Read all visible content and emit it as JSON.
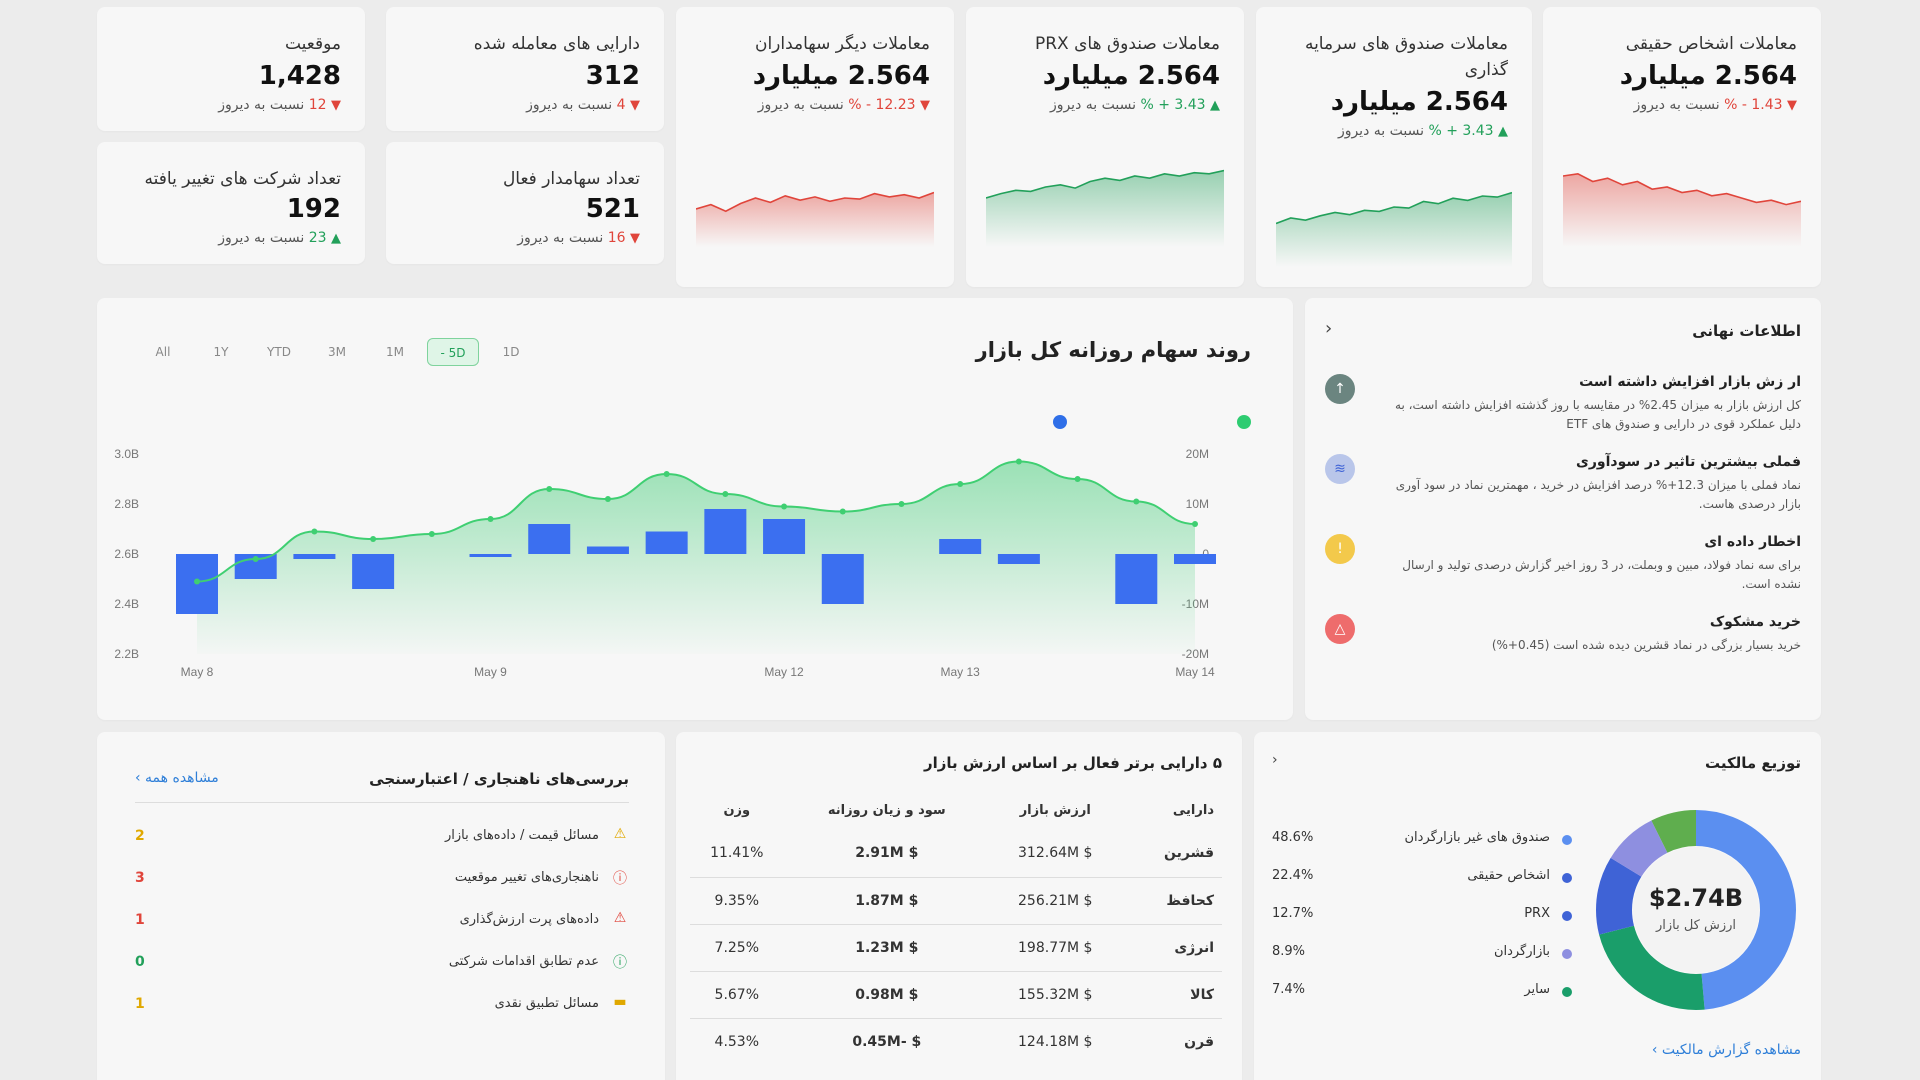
{
  "kpis": [
    {
      "id": "position",
      "title": "موقعیت",
      "value": "1,428",
      "delta": "12",
      "delta_dir": "down",
      "suffix": "نسبت به دیروز"
    },
    {
      "id": "traded-assets",
      "title": "دارایی های معامله شده",
      "value": "312",
      "delta": "4",
      "delta_dir": "down",
      "suffix": "نسبت به دیروز"
    },
    {
      "id": "changed-companies",
      "title": "تعداد شرکت های تغییر یافته",
      "value": "192",
      "delta": "23",
      "delta_dir": "up",
      "suffix": "نسبت به دیروز"
    },
    {
      "id": "active-shareholders",
      "title": "تعداد سهامدار فعال",
      "value": "521",
      "delta": "16",
      "delta_dir": "down",
      "suffix": "نسبت به دیروز"
    }
  ],
  "trade_cards": [
    {
      "id": "other-shareholders",
      "title": "معاملات دیگر سهامداران",
      "value": "2.564 میلیارد",
      "delta": "12.23 - %",
      "delta_dir": "down",
      "suffix": "نسبت به دیروز",
      "color": "#e0453b",
      "trend": [
        0.3,
        0.34,
        0.28,
        0.35,
        0.4,
        0.36,
        0.42,
        0.38,
        0.41,
        0.37,
        0.4,
        0.39,
        0.44,
        0.41,
        0.43,
        0.4,
        0.45
      ]
    },
    {
      "id": "prx-funds",
      "title": "معاملات صندوق های PRX",
      "value": "2.564 میلیارد",
      "delta": "3.43 + %",
      "delta_dir": "up",
      "suffix": "نسبت به دیروز",
      "color": "#22a05a",
      "trend": [
        0.4,
        0.44,
        0.47,
        0.46,
        0.5,
        0.52,
        0.49,
        0.55,
        0.58,
        0.56,
        0.6,
        0.58,
        0.62,
        0.6,
        0.63,
        0.62,
        0.65
      ]
    },
    {
      "id": "investment-funds",
      "title": "معاملات صندوق های سرمایه گذاری",
      "value": "2.564 میلیارد",
      "delta": "3.43 + %",
      "delta_dir": "up",
      "suffix": "نسبت به دیروز",
      "color": "#22a05a",
      "trend": [
        0.35,
        0.4,
        0.38,
        0.42,
        0.45,
        0.43,
        0.47,
        0.46,
        0.5,
        0.49,
        0.55,
        0.53,
        0.58,
        0.56,
        0.6,
        0.59,
        0.63
      ]
    },
    {
      "id": "natural-persons",
      "title": "معاملات اشخاص حقیقی",
      "value": "2.564 میلیارد",
      "delta": "1.43 - %",
      "delta_dir": "down",
      "suffix": "نسبت به دیروز",
      "color": "#e0453b",
      "trend": [
        0.6,
        0.62,
        0.55,
        0.58,
        0.52,
        0.55,
        0.48,
        0.5,
        0.45,
        0.47,
        0.42,
        0.44,
        0.4,
        0.36,
        0.38,
        0.34,
        0.37
      ]
    }
  ],
  "main_chart": {
    "title": "روند سهام روزانه کل بازار",
    "ranges": [
      "All",
      "1Y",
      "YTD",
      "3M",
      "1M",
      "5D",
      "1D"
    ],
    "active_range": "5D",
    "active_range_display": "- 5D",
    "legend_colors": [
      "#2f6fe8",
      "#2ecc71"
    ],
    "left_ticks": [
      "3.0B",
      "2.8B",
      "2.6B",
      "2.4B",
      "2.2B"
    ],
    "right_ticks": [
      "20M",
      "10M",
      "0",
      "-10M",
      "-20M"
    ],
    "right_tick_labels": [
      "20M",
      "10M",
      "0",
      "10M-",
      "20M-"
    ],
    "x_labels": [
      {
        "label": "May 8",
        "x": 0
      },
      {
        "label": "May 9",
        "x": 5
      },
      {
        "label": "May 12",
        "x": 10
      },
      {
        "label": "May 13",
        "x": 13
      },
      {
        "label": "May 14",
        "x": 17
      }
    ]
  },
  "chart_data": {
    "type": "bar",
    "title": "روند سهام روزانه کل بازار",
    "x": [
      0,
      1,
      2,
      3,
      4,
      5,
      6,
      7,
      8,
      9,
      10,
      11,
      12,
      13,
      14,
      15,
      16,
      17
    ],
    "line_series": {
      "name": "",
      "axis": "left",
      "values": [
        2.49,
        2.58,
        2.69,
        2.66,
        2.68,
        2.74,
        2.86,
        2.82,
        2.92,
        2.84,
        2.79,
        2.77,
        2.8,
        2.88,
        2.97,
        2.9,
        2.81,
        2.72
      ]
    },
    "bar_series": {
      "name": "",
      "axis": "right",
      "values": [
        -12,
        -5,
        -1,
        -7,
        0,
        -0.5,
        6,
        1.5,
        4.5,
        9,
        7,
        -10,
        0,
        3,
        -2,
        0,
        -10,
        -2
      ]
    },
    "left_ylim": [
      2.2,
      3.0
    ],
    "right_ylim": [
      -20,
      20
    ],
    "xlabels": [
      "May 8",
      "May 9",
      "May 12",
      "May 13",
      "May 14"
    ]
  },
  "insights": {
    "title": "اطلاعات نهانی",
    "items": [
      {
        "title": "ار زش بازار افزایش داشته است",
        "text": "کل ارزش بازار به میزان 2.45% در مقایسه با روز گذشته افزایش داشته است، به دلیل عملکرد قوی در دارایی و صندوق های ETF",
        "icon": "up-arrow-icon",
        "glyph": "↑",
        "color": "#6b8580"
      },
      {
        "title": "فملی بیشترین تاثیر در سودآوری",
        "text": "نماد فملی با میزان 12.3+% درصد افزایش در خرید ، مهمترین نماد در سود آوری بازار درصدی هاست.",
        "icon": "layers-icon",
        "glyph": "≋",
        "color": "#b9c6ea"
      },
      {
        "title": "اخطار داده ای",
        "text": "برای سه نماد فولاد، مبین و وبملت، در 3 روز اخیر گزارش درصدی تولید و ارسال نشده است.",
        "icon": "warning-icon",
        "glyph": "!",
        "color": "#f3c94b"
      },
      {
        "title": "خرید مشکوک",
        "text": "خرید بسیار بزرگی در نماد قشرین دیده شده است (0.45+%)",
        "icon": "alert-triangle-icon",
        "glyph": "△",
        "color": "#ee6c6c"
      }
    ]
  },
  "anomaly": {
    "title": "بررسی‌های ناهنجاری / اعتبارسنجی",
    "link": "مشاهده همه ›",
    "items": [
      {
        "label": "مسائل قیمت / داده‌های بازار",
        "count": "2",
        "icon": "warning-icon",
        "glyph": "⚠",
        "color": "#e0a800"
      },
      {
        "label": "ناهنجاری‌های تغییر موقعیت",
        "count": "3",
        "icon": "error-circle-icon",
        "glyph": "ⓘ",
        "color": "#e0453b"
      },
      {
        "label": "داده‌های پرت ارزش‌گذاری",
        "count": "1",
        "icon": "alert-triangle-icon",
        "glyph": "⚠",
        "color": "#e0453b"
      },
      {
        "label": "عدم تطابق اقدامات شرکتی",
        "count": "0",
        "icon": "info-icon",
        "glyph": "ⓘ",
        "color": "#22a05a"
      },
      {
        "label": "مسائل تطبیق نقدی",
        "count": "1",
        "icon": "card-icon",
        "glyph": "▬",
        "color": "#e0a800"
      }
    ]
  },
  "top_assets": {
    "title": "۵ دارایی برتر فعال بر اساس ارزش بازار",
    "headers": {
      "asset": "دارایی",
      "market_value": "ارزش بازار",
      "pnl": "سود و زیان روزانه",
      "weight": "وزن"
    },
    "rows": [
      {
        "asset": "قشرین",
        "market_value": "312.64M $",
        "pnl": "2.91M $",
        "pnl_dir": "up",
        "weight": "11.41%"
      },
      {
        "asset": "کحافظ",
        "market_value": "256.21M $",
        "pnl": "1.87M $",
        "pnl_dir": "up",
        "weight": "9.35%"
      },
      {
        "asset": "انرژی",
        "market_value": "198.77M $",
        "pnl": "1.23M $",
        "pnl_dir": "up",
        "weight": "7.25%"
      },
      {
        "asset": "کالا",
        "market_value": "155.32M $",
        "pnl": "0.98M $",
        "pnl_dir": "up",
        "weight": "5.67%"
      },
      {
        "asset": "قرن",
        "market_value": "124.18M $",
        "pnl": "0.45M- $",
        "pnl_dir": "down",
        "weight": "4.53%"
      }
    ]
  },
  "ownership": {
    "title": "توزیع مالکیت",
    "nav": "‹",
    "total": "$2.74B",
    "total_label": "ارزش کل بازار",
    "link": "مشاهده گزارش مالکیت ›",
    "slices": [
      {
        "label": "صندوق های غیر بازارگردان",
        "pct": "48.6%",
        "value": 48.6,
        "color": "#5b8ff0"
      },
      {
        "label": "اشخاص حقیقی",
        "pct": "22.4%",
        "value": 22.4,
        "color": "#1a9e6a"
      },
      {
        "label": "PRX",
        "pct": "12.7%",
        "value": 12.7,
        "color": "#3f63d6"
      },
      {
        "label": "بازارگردان",
        "pct": "8.9%",
        "value": 8.9,
        "color": "#8e8fe0"
      },
      {
        "label": "سایر",
        "pct": "7.4%",
        "value": 7.4,
        "color": "#5fae4e"
      }
    ]
  }
}
